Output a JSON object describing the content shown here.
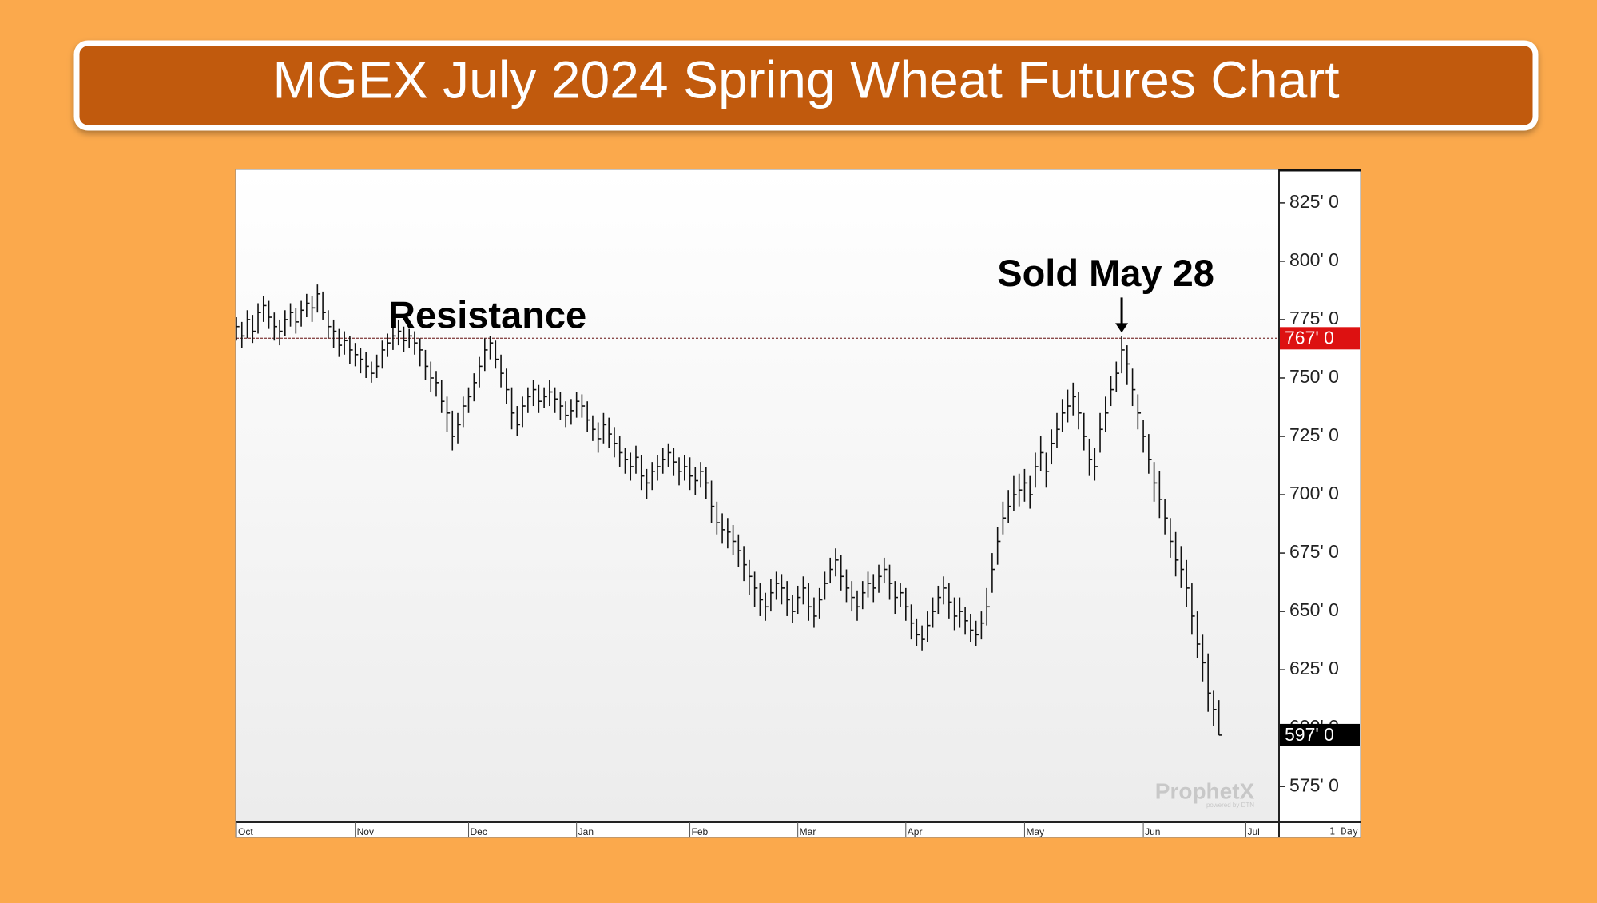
{
  "chart_data": {
    "type": "hlc",
    "title": "MGEX July 2024 Spring Wheat Futures Chart",
    "high": [
      776,
      774,
      779,
      777,
      782,
      785,
      783,
      778,
      775,
      779,
      782,
      780,
      783,
      786,
      785,
      790,
      787,
      779,
      775,
      771,
      770,
      768,
      765,
      763,
      761,
      757,
      760,
      766,
      769,
      772,
      775,
      772,
      771,
      770,
      767,
      762,
      757,
      753,
      749,
      742,
      736,
      735,
      742,
      746,
      752,
      759,
      767,
      768,
      766,
      760,
      754,
      746,
      738,
      742,
      746,
      749,
      747,
      746,
      749,
      746,
      744,
      740,
      741,
      744,
      743,
      740,
      734,
      731,
      735,
      733,
      729,
      725,
      720,
      718,
      721,
      717,
      711,
      714,
      717,
      720,
      722,
      720,
      716,
      717,
      716,
      712,
      714,
      712,
      706,
      697,
      692,
      690,
      687,
      683,
      678,
      672,
      667,
      662,
      658,
      664,
      667,
      666,
      663,
      657,
      661,
      665,
      662,
      656,
      660,
      667,
      673,
      677,
      674,
      668,
      663,
      659,
      663,
      667,
      666,
      670,
      673,
      670,
      663,
      662,
      660,
      653,
      647,
      644,
      650,
      656,
      661,
      665,
      662,
      656,
      656,
      652,
      649,
      646,
      650,
      660,
      675,
      686,
      697,
      702,
      708,
      709,
      711,
      708,
      718,
      725,
      718,
      728,
      735,
      741,
      745,
      748,
      744,
      735,
      724,
      720,
      735,
      742,
      751,
      757,
      768,
      764,
      754,
      743,
      732,
      726,
      714,
      710,
      698,
      690,
      684,
      678,
      672,
      662,
      650,
      640,
      632,
      616,
      612
    ],
    "low": [
      766,
      763,
      767,
      765,
      769,
      774,
      771,
      766,
      764,
      768,
      772,
      769,
      772,
      776,
      774,
      778,
      775,
      767,
      763,
      759,
      760,
      756,
      755,
      752,
      750,
      748,
      750,
      754,
      759,
      762,
      764,
      761,
      763,
      760,
      755,
      749,
      744,
      742,
      735,
      727,
      719,
      722,
      729,
      735,
      740,
      746,
      753,
      758,
      754,
      746,
      739,
      728,
      725,
      729,
      735,
      738,
      735,
      737,
      738,
      735,
      732,
      729,
      730,
      733,
      733,
      727,
      723,
      718,
      722,
      720,
      716,
      712,
      709,
      706,
      709,
      702,
      698,
      702,
      706,
      709,
      712,
      708,
      704,
      706,
      702,
      700,
      703,
      698,
      688,
      683,
      679,
      677,
      674,
      669,
      663,
      657,
      652,
      648,
      646,
      650,
      655,
      653,
      648,
      645,
      649,
      653,
      646,
      643,
      647,
      655,
      662,
      665,
      659,
      654,
      650,
      646,
      651,
      656,
      654,
      658,
      662,
      655,
      649,
      652,
      646,
      638,
      635,
      633,
      637,
      643,
      649,
      653,
      647,
      642,
      643,
      640,
      637,
      635,
      638,
      644,
      658,
      670,
      683,
      688,
      693,
      695,
      697,
      694,
      703,
      710,
      703,
      713,
      720,
      727,
      731,
      734,
      728,
      719,
      708,
      706,
      718,
      727,
      738,
      744,
      752,
      747,
      738,
      728,
      718,
      709,
      697,
      690,
      683,
      673,
      665,
      660,
      652,
      640,
      630,
      620,
      607,
      601,
      597
    ],
    "close": [
      772,
      768,
      775,
      770,
      778,
      781,
      776,
      772,
      770,
      775,
      778,
      774,
      779,
      782,
      780,
      786,
      778,
      772,
      770,
      764,
      766,
      762,
      760,
      758,
      755,
      752,
      755,
      762,
      765,
      768,
      770,
      766,
      768,
      765,
      762,
      755,
      750,
      748,
      740,
      735,
      725,
      730,
      738,
      742,
      748,
      755,
      762,
      765,
      758,
      752,
      745,
      735,
      730,
      738,
      742,
      745,
      740,
      742,
      744,
      741,
      738,
      734,
      736,
      740,
      738,
      732,
      728,
      724,
      730,
      726,
      722,
      718,
      715,
      712,
      716,
      708,
      705,
      710,
      712,
      715,
      718,
      714,
      710,
      712,
      708,
      706,
      710,
      705,
      695,
      688,
      685,
      684,
      680,
      676,
      670,
      665,
      660,
      655,
      652,
      658,
      662,
      660,
      655,
      650,
      656,
      660,
      652,
      648,
      655,
      662,
      668,
      672,
      665,
      660,
      656,
      652,
      658,
      662,
      660,
      665,
      668,
      662,
      656,
      658,
      652,
      645,
      640,
      638,
      644,
      650,
      656,
      660,
      654,
      648,
      650,
      646,
      642,
      640,
      645,
      652,
      668,
      680,
      690,
      695,
      700,
      702,
      705,
      700,
      712,
      718,
      710,
      722,
      728,
      735,
      738,
      742,
      735,
      725,
      715,
      712,
      728,
      735,
      745,
      752,
      762,
      756,
      745,
      735,
      725,
      715,
      705,
      698,
      690,
      680,
      672,
      668,
      660,
      648,
      636,
      628,
      615,
      608,
      597
    ],
    "color": "#111111",
    "xlim": [
      0,
      193
    ],
    "xticks": [
      {
        "value": 0,
        "label": "Oct"
      },
      {
        "value": 22,
        "label": "Nov"
      },
      {
        "value": 43,
        "label": "Dec"
      },
      {
        "value": 63,
        "label": "Jan"
      },
      {
        "value": 84,
        "label": "Feb"
      },
      {
        "value": 104,
        "label": "Mar"
      },
      {
        "value": 124,
        "label": "Apr"
      },
      {
        "value": 146,
        "label": "May"
      },
      {
        "value": 168,
        "label": "Jun"
      },
      {
        "value": 187,
        "label": "Jul"
      }
    ],
    "ylim": [
      560,
      839
    ],
    "yticks": [
      {
        "value": 575,
        "label": "575' 0"
      },
      {
        "value": 600,
        "label": "600' 0"
      },
      {
        "value": 625,
        "label": "625' 0"
      },
      {
        "value": 650,
        "label": "650' 0"
      },
      {
        "value": 675,
        "label": "675' 0"
      },
      {
        "value": 700,
        "label": "700' 0"
      },
      {
        "value": 725,
        "label": "725' 0"
      },
      {
        "value": 750,
        "label": "750' 0"
      },
      {
        "value": 775,
        "label": "775' 0"
      },
      {
        "value": 800,
        "label": "800' 0"
      },
      {
        "value": 825,
        "label": "825' 0"
      }
    ],
    "resistance": {
      "value": 767,
      "label": "767' 0",
      "text": "Resistance",
      "color": "#dd1111"
    },
    "last_price": {
      "value": 597,
      "label": "597' 0",
      "color": "#000000"
    },
    "annotation": {
      "text": "Sold May 28",
      "x": 164,
      "value": 768
    },
    "period": "1 Day",
    "watermark": "ProphetX",
    "watermark_sub": "powered by DTN"
  }
}
